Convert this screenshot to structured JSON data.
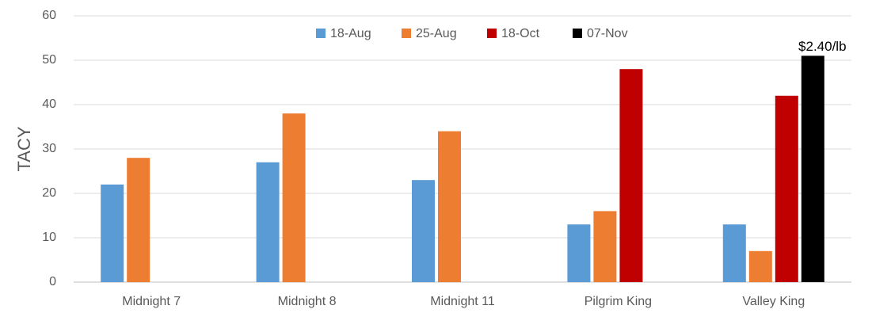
{
  "chart_data": {
    "type": "bar",
    "y_label": "TACY",
    "annotation": "$2.40/lb",
    "categories": [
      "Midnight 7",
      "Midnight 8",
      "Midnight 11",
      "Pilgrim King",
      "Valley King"
    ],
    "series": [
      {
        "name": "18-Aug",
        "color": "#5b9bd5",
        "values": [
          22,
          27,
          23,
          13,
          13
        ]
      },
      {
        "name": "25-Aug",
        "color": "#ed7d31",
        "values": [
          28,
          38,
          34,
          16,
          7
        ]
      },
      {
        "name": "18-Oct",
        "color": "#c00000",
        "values": [
          null,
          null,
          null,
          48,
          42
        ]
      },
      {
        "name": "07-Nov",
        "color": "#000000",
        "values": [
          null,
          null,
          null,
          null,
          51
        ]
      }
    ],
    "ylim": [
      0,
      60
    ],
    "yticks": [
      0,
      10,
      20,
      30,
      40,
      50,
      60
    ],
    "grid": true,
    "legend": "top"
  }
}
